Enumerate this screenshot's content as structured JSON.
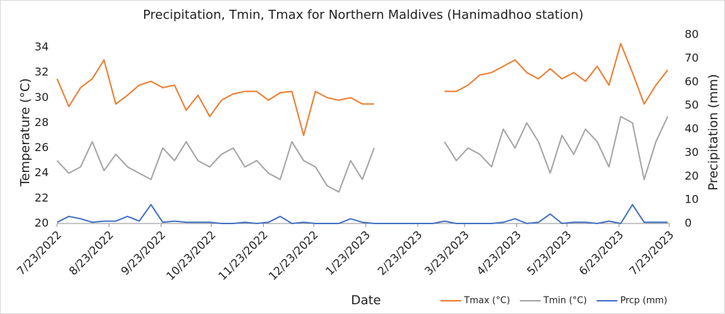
{
  "chart_data": {
    "type": "line",
    "title": "Precipitation, Tmin, Tmax for Northern Maldives (Hanimadhoo station)",
    "x_label": "Date",
    "y_label": "Temperature (°C)",
    "y2_label": "Precipitation (mm)",
    "x": [
      "2022-07-23",
      "2022-07-30",
      "2022-08-06",
      "2022-08-13",
      "2022-08-20",
      "2022-08-27",
      "2022-09-03",
      "2022-09-10",
      "2022-09-17",
      "2022-09-24",
      "2022-10-01",
      "2022-10-08",
      "2022-10-15",
      "2022-10-22",
      "2022-10-29",
      "2022-11-05",
      "2022-11-12",
      "2022-11-19",
      "2022-11-26",
      "2022-12-03",
      "2022-12-10",
      "2022-12-17",
      "2022-12-24",
      "2022-12-31",
      "2023-01-07",
      "2023-01-14",
      "2023-01-21",
      "2023-01-28",
      "2023-02-04",
      "2023-02-11",
      "2023-02-18",
      "2023-02-25",
      "2023-03-04",
      "2023-03-11",
      "2023-03-18",
      "2023-03-25",
      "2023-04-01",
      "2023-04-08",
      "2023-04-15",
      "2023-04-22",
      "2023-04-29",
      "2023-05-06",
      "2023-05-13",
      "2023-05-20",
      "2023-05-27",
      "2023-06-03",
      "2023-06-10",
      "2023-06-17",
      "2023-06-24",
      "2023-07-01",
      "2023-07-08",
      "2023-07-15",
      "2023-07-22"
    ],
    "series": [
      {
        "name": "Tmax (°C)",
        "color": "#ED7D31",
        "axis": "y",
        "values": [
          31.5,
          29.3,
          30.8,
          31.5,
          33.0,
          29.5,
          30.2,
          31.0,
          31.3,
          30.8,
          31.0,
          29.0,
          30.2,
          28.5,
          29.8,
          30.3,
          30.5,
          30.5,
          29.8,
          30.4,
          30.5,
          27.0,
          30.5,
          30.0,
          29.8,
          30.0,
          29.5,
          29.5,
          null,
          null,
          null,
          null,
          null,
          30.5,
          30.5,
          31.0,
          31.8,
          32.0,
          32.5,
          33.0,
          32.0,
          31.5,
          32.3,
          31.5,
          32.0,
          31.3,
          32.5,
          31.0,
          34.3,
          32.0,
          29.5,
          31.0,
          32.2
        ]
      },
      {
        "name": "Tmin (°C)",
        "color": "#A5A5A5",
        "axis": "y",
        "values": [
          25.0,
          24.0,
          24.5,
          26.5,
          24.2,
          25.5,
          24.5,
          24.0,
          23.5,
          26.0,
          25.0,
          26.5,
          25.0,
          24.5,
          25.5,
          26.0,
          24.5,
          25.0,
          24.0,
          23.5,
          26.5,
          25.0,
          24.5,
          23.0,
          22.5,
          25.0,
          23.5,
          26.0,
          null,
          null,
          null,
          null,
          null,
          26.5,
          25.0,
          26.0,
          25.5,
          24.5,
          27.5,
          26.0,
          28.0,
          26.5,
          24.0,
          27.0,
          25.5,
          27.5,
          26.5,
          24.5,
          28.5,
          28.0,
          23.5,
          26.5,
          28.5
        ]
      },
      {
        "name": "Prcp (mm)",
        "color": "#4472C4",
        "axis": "y2",
        "values": [
          0.5,
          3,
          2,
          0.5,
          1,
          1,
          3,
          1,
          8,
          0.5,
          1,
          0.5,
          0.5,
          0.5,
          0,
          0,
          0.5,
          0,
          0.5,
          3,
          0,
          0.5,
          0,
          0,
          0,
          2,
          0.5,
          0,
          0,
          0,
          0,
          0,
          0,
          1,
          0,
          0,
          0,
          0,
          0.5,
          2,
          0,
          0.5,
          4,
          0,
          0.5,
          0.5,
          0,
          1,
          0,
          8,
          0.5,
          0.5,
          0.5
        ]
      }
    ],
    "xlim": [
      "2022-07-23",
      "2023-07-23"
    ],
    "xticks": [
      {
        "value": "2022-07-23",
        "label": "7/23/2022"
      },
      {
        "value": "2022-08-23",
        "label": "8/23/2022"
      },
      {
        "value": "2022-09-23",
        "label": "9/23/2022"
      },
      {
        "value": "2022-10-23",
        "label": "10/23/2022"
      },
      {
        "value": "2022-11-23",
        "label": "11/23/2022"
      },
      {
        "value": "2022-12-23",
        "label": "12/23/2022"
      },
      {
        "value": "2023-01-23",
        "label": "1/23/2023"
      },
      {
        "value": "2023-02-23",
        "label": "2/23/2023"
      },
      {
        "value": "2023-03-23",
        "label": "3/23/2023"
      },
      {
        "value": "2023-04-23",
        "label": "4/23/2023"
      },
      {
        "value": "2023-05-23",
        "label": "5/23/2023"
      },
      {
        "value": "2023-06-23",
        "label": "6/23/2023"
      },
      {
        "value": "2023-07-23",
        "label": "7/23/2023"
      }
    ],
    "ylim": [
      20,
      35
    ],
    "yticks": [
      20,
      22,
      24,
      26,
      28,
      30,
      32,
      34
    ],
    "y2lim": [
      0,
      80
    ],
    "y2ticks": [
      0,
      10,
      20,
      30,
      40,
      50,
      60,
      70,
      80
    ],
    "grid": false,
    "legend": "bottom-right"
  }
}
